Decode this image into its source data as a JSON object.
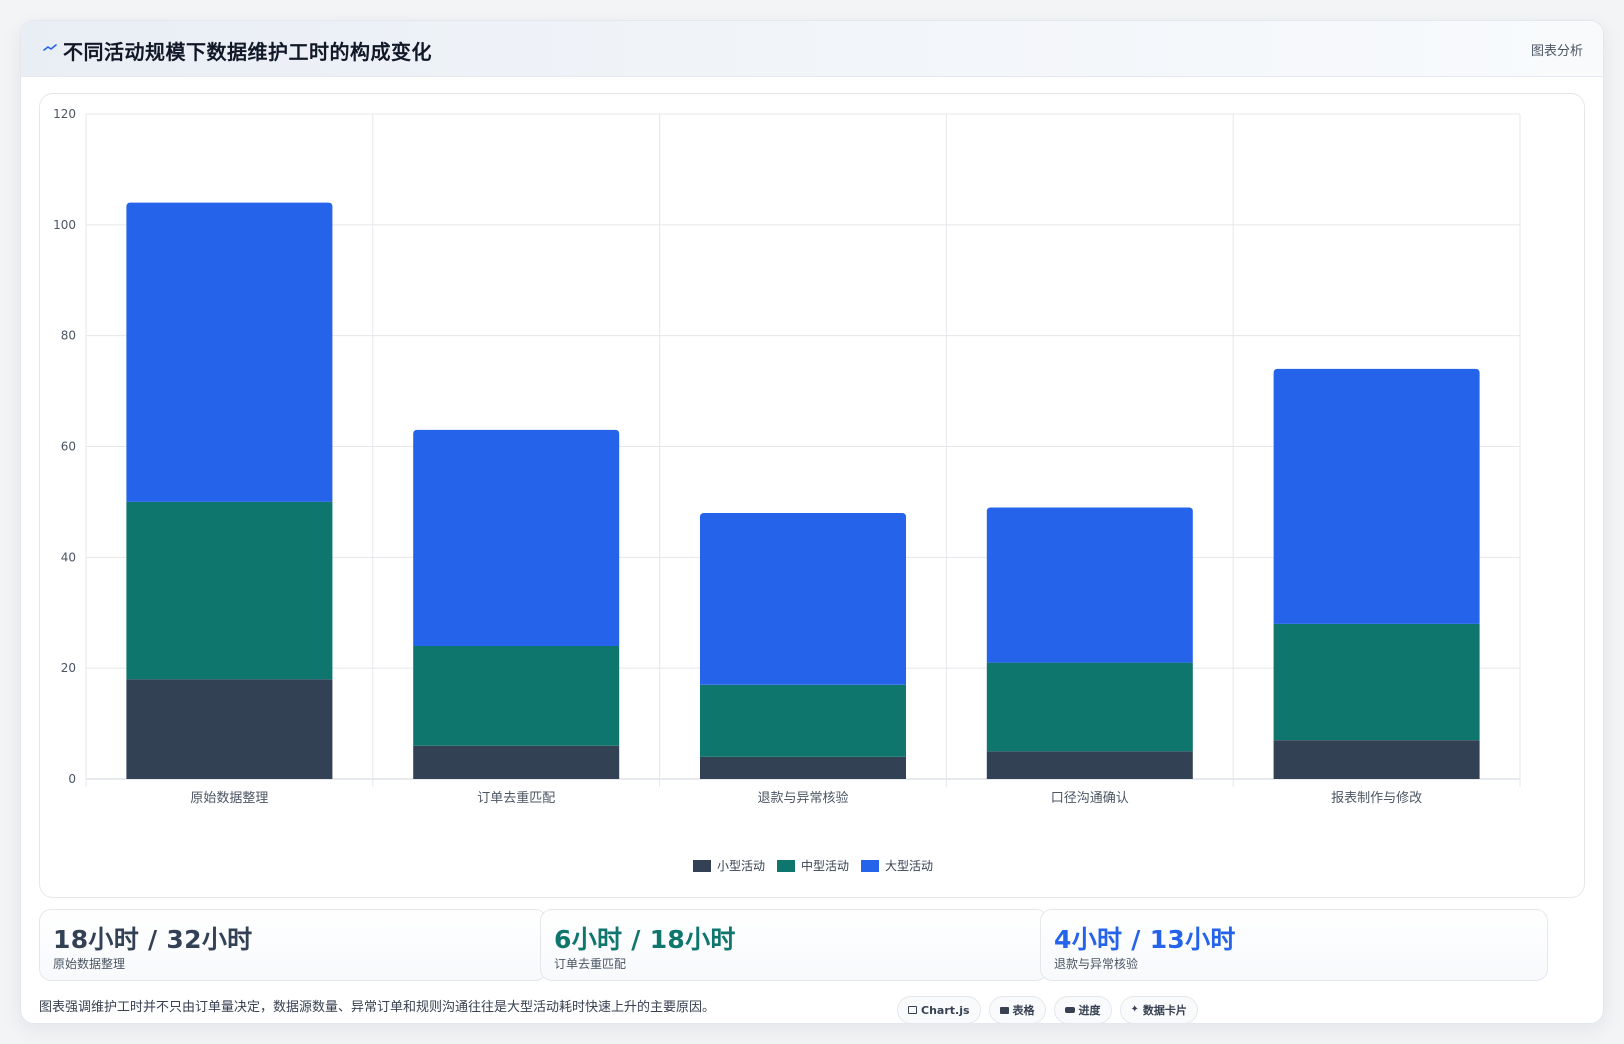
{
  "header": {
    "title": "不同活动规模下数据维护工时的构成变化",
    "link": "图表分析",
    "icon": "pulse-icon"
  },
  "colors": {
    "small": "#334155",
    "medium": "#0f766e",
    "large": "#2563eb",
    "grid": "#e5e7eb",
    "axis_text": "#4b5563"
  },
  "chart_data": {
    "type": "bar",
    "stacked": true,
    "categories": [
      "原始数据整理",
      "订单去重匹配",
      "退款与异常核验",
      "口径沟通确认",
      "报表制作与修改"
    ],
    "series": [
      {
        "name": "小型活动",
        "values": [
          18,
          6,
          4,
          5,
          7
        ],
        "color": "#334155"
      },
      {
        "name": "中型活动",
        "values": [
          32,
          18,
          13,
          16,
          21
        ],
        "color": "#0f766e"
      },
      {
        "name": "大型活动",
        "values": [
          54,
          39,
          31,
          28,
          46
        ],
        "color": "#2563eb"
      }
    ],
    "ylim": [
      0,
      120
    ],
    "yticks": [
      0,
      20,
      40,
      60,
      80,
      100,
      120
    ],
    "grid": true,
    "legend": "bottom"
  },
  "stats": [
    {
      "value": "18小时 / 32小时",
      "label": "原始数据整理",
      "color": "#334155"
    },
    {
      "value": "6小时 / 18小时",
      "label": "订单去重匹配",
      "color": "#0f766e"
    },
    {
      "value": "4小时 / 13小时",
      "label": "退款与异常核验",
      "color": "#2563eb"
    }
  ],
  "footnote": "图表强调维护工时并不只由订单量决定，数据源数量、异常订单和规则沟通往往是大型活动耗时快速上升的主要原因。",
  "chips": [
    {
      "label": "Chart.js",
      "icon": "chart-icon"
    },
    {
      "label": "表格",
      "icon": "table-icon"
    },
    {
      "label": "进度",
      "icon": "progress-icon"
    },
    {
      "label": "数据卡片",
      "icon": "sparkle-icon"
    }
  ]
}
